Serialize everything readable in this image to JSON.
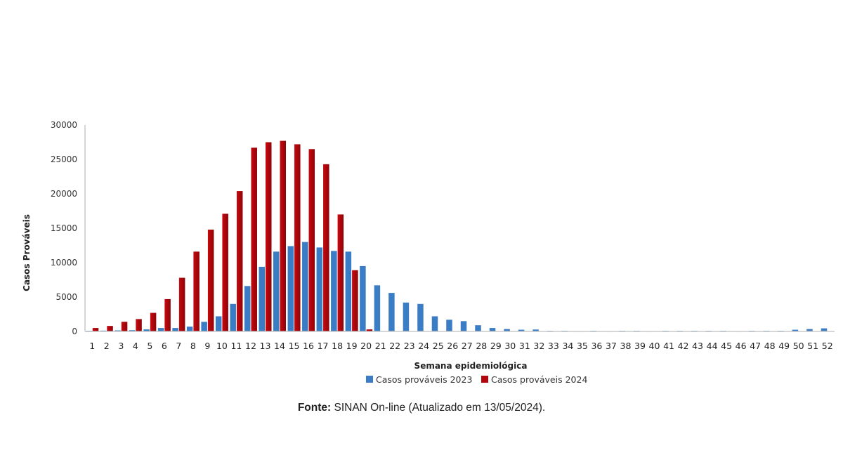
{
  "chart_data": {
    "type": "bar",
    "title": "",
    "xlabel": "Semana epidemiológica",
    "ylabel": "Casos Prováveis",
    "ylim": [
      0,
      30000
    ],
    "yticks": [
      0,
      5000,
      10000,
      15000,
      20000,
      25000,
      30000
    ],
    "ytick_labels": [
      "0",
      "5000",
      "10000",
      "15000",
      "20000",
      "25000",
      "30000"
    ],
    "grid": false,
    "legend_position": "bottom",
    "categories": [
      "1",
      "2",
      "3",
      "4",
      "5",
      "6",
      "7",
      "8",
      "9",
      "10",
      "11",
      "12",
      "13",
      "14",
      "15",
      "16",
      "17",
      "18",
      "19",
      "20",
      "21",
      "22",
      "23",
      "24",
      "25",
      "26",
      "27",
      "28",
      "29",
      "30",
      "31",
      "32",
      "33",
      "34",
      "35",
      "36",
      "37",
      "38",
      "39",
      "40",
      "41",
      "42",
      "43",
      "44",
      "45",
      "46",
      "47",
      "48",
      "49",
      "50",
      "51",
      "52"
    ],
    "series": [
      {
        "name": "Casos prováveis 2023",
        "color": "#3a7dc4",
        "values": [
          100,
          120,
          150,
          180,
          300,
          500,
          500,
          700,
          1400,
          2200,
          4000,
          6600,
          9400,
          11600,
          12400,
          13000,
          12200,
          11700,
          11600,
          9500,
          6700,
          5600,
          4200,
          4000,
          2200,
          1700,
          1500,
          900,
          500,
          350,
          250,
          280,
          100,
          100,
          30,
          100,
          30,
          100,
          100,
          30,
          100,
          100,
          100,
          100,
          100,
          30,
          100,
          100,
          100,
          250,
          350,
          450
        ]
      },
      {
        "name": "Casos prováveis 2024",
        "color": "#b3060c",
        "values": [
          500,
          800,
          1400,
          1800,
          2700,
          4700,
          7800,
          11600,
          14800,
          17100,
          20400,
          26700,
          27500,
          27700,
          27200,
          26500,
          24300,
          17000,
          8900,
          300,
          null,
          null,
          null,
          null,
          null,
          null,
          null,
          null,
          null,
          null,
          null,
          null,
          null,
          null,
          null,
          null,
          null,
          null,
          null,
          null,
          null,
          null,
          null,
          null,
          null,
          null,
          null,
          null,
          null,
          null,
          null,
          null
        ]
      }
    ]
  },
  "source": {
    "label": "Fonte:",
    "text": " SINAN On-line (Atualizado em 13/05/2024)."
  }
}
